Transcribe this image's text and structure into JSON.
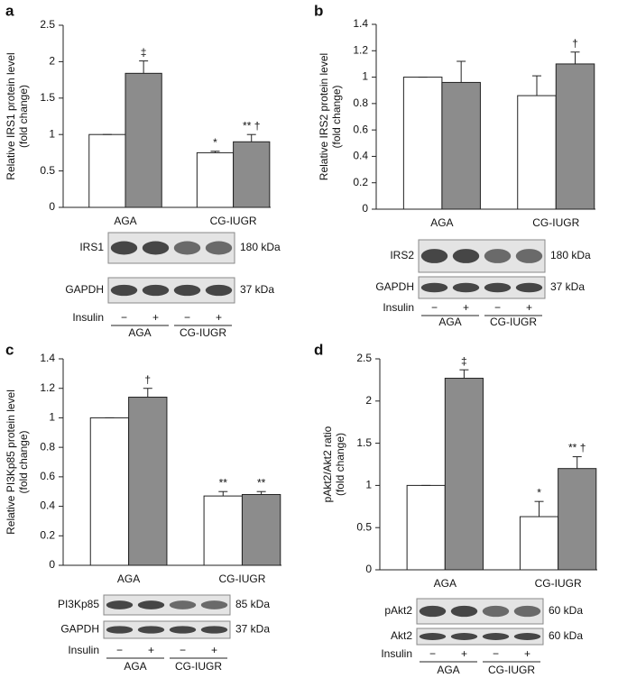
{
  "chart_data": [
    {
      "type": "bar",
      "panel": "a",
      "ylabel": [
        "Relative IRS1 protein level",
        "(fold change)"
      ],
      "categories": [
        "AGA",
        "CG-IUGR"
      ],
      "ylim": [
        0,
        2.5
      ],
      "yticks": [
        0,
        0.5,
        1,
        1.5,
        2,
        2.5
      ],
      "series": [
        {
          "color": "#ffffff",
          "values": [
            1,
            0.75
          ],
          "errors": [
            0,
            0.02
          ],
          "annotations": [
            null,
            "*"
          ]
        },
        {
          "color": "#8c8c8c",
          "values": [
            1.84,
            0.9
          ],
          "errors": [
            0.17,
            0.1
          ],
          "annotations": [
            "‡",
            "** †"
          ]
        }
      ],
      "blot": {
        "rows": [
          {
            "label": "IRS1",
            "size": "180 kDa"
          },
          {
            "label": "GAPDH",
            "size": "37 kDa"
          }
        ],
        "insulin_label": "Insulin",
        "insulin_signs": [
          "−",
          "+",
          "−",
          "+"
        ],
        "groups": [
          "AGA",
          "CG-IUGR"
        ]
      }
    },
    {
      "type": "bar",
      "panel": "b",
      "ylabel": [
        "Relative IRS2 protein level",
        "(fold change)"
      ],
      "categories": [
        "AGA",
        "CG-IUGR"
      ],
      "ylim": [
        0,
        1.4
      ],
      "yticks": [
        0,
        0.2,
        0.4,
        0.6,
        0.8,
        1,
        1.2,
        1.4
      ],
      "series": [
        {
          "color": "#ffffff",
          "values": [
            1,
            0.86
          ],
          "errors": [
            0,
            0.15
          ],
          "annotations": [
            null,
            null
          ]
        },
        {
          "color": "#8c8c8c",
          "values": [
            0.96,
            1.1
          ],
          "errors": [
            0.16,
            0.09
          ],
          "annotations": [
            null,
            "†"
          ]
        }
      ],
      "blot": {
        "rows": [
          {
            "label": "IRS2",
            "size": "180 kDa"
          },
          {
            "label": "GAPDH",
            "size": "37 kDa"
          }
        ],
        "insulin_label": "Insulin",
        "insulin_signs": [
          "−",
          "+",
          "−",
          "+"
        ],
        "groups": [
          "AGA",
          "CG-IUGR"
        ]
      }
    },
    {
      "type": "bar",
      "panel": "c",
      "ylabel": [
        "Relative PI3Kp85 protein level",
        "(fold change)"
      ],
      "categories": [
        "AGA",
        "CG-IUGR"
      ],
      "ylim": [
        0,
        1.4
      ],
      "yticks": [
        0,
        0.2,
        0.4,
        0.6,
        0.8,
        1,
        1.2,
        1.4
      ],
      "series": [
        {
          "color": "#ffffff",
          "values": [
            1,
            0.47
          ],
          "errors": [
            0,
            0.03
          ],
          "annotations": [
            null,
            "**"
          ]
        },
        {
          "color": "#8c8c8c",
          "values": [
            1.14,
            0.48
          ],
          "errors": [
            0.06,
            0.02
          ],
          "annotations": [
            "†",
            "**"
          ]
        }
      ],
      "blot": {
        "rows": [
          {
            "label": "PI3Kp85",
            "size": "85 kDa"
          },
          {
            "label": "GAPDH",
            "size": "37 kDa"
          }
        ],
        "insulin_label": "Insulin",
        "insulin_signs": [
          "−",
          "+",
          "−",
          "+"
        ],
        "groups": [
          "AGA",
          "CG-IUGR"
        ]
      }
    },
    {
      "type": "bar",
      "panel": "d",
      "ylabel": [
        "pAkt2/Akt2 ratio",
        "(fold change)"
      ],
      "categories": [
        "AGA",
        "CG-IUGR"
      ],
      "ylim": [
        0,
        2.5
      ],
      "yticks": [
        0,
        0.5,
        1,
        1.5,
        2,
        2.5
      ],
      "series": [
        {
          "color": "#ffffff",
          "values": [
            1,
            0.63
          ],
          "errors": [
            0,
            0.18
          ],
          "annotations": [
            null,
            "*"
          ]
        },
        {
          "color": "#8c8c8c",
          "values": [
            2.27,
            1.2
          ],
          "errors": [
            0.1,
            0.14
          ],
          "annotations": [
            "‡",
            "** †"
          ]
        }
      ],
      "blot": {
        "rows": [
          {
            "label": "pAkt2",
            "size": "60 kDa"
          },
          {
            "label": "Akt2",
            "size": "60 kDa"
          }
        ],
        "insulin_label": "Insulin",
        "insulin_signs": [
          "−",
          "+",
          "−",
          "+"
        ],
        "groups": [
          "AGA",
          "CG-IUGR"
        ]
      }
    }
  ]
}
